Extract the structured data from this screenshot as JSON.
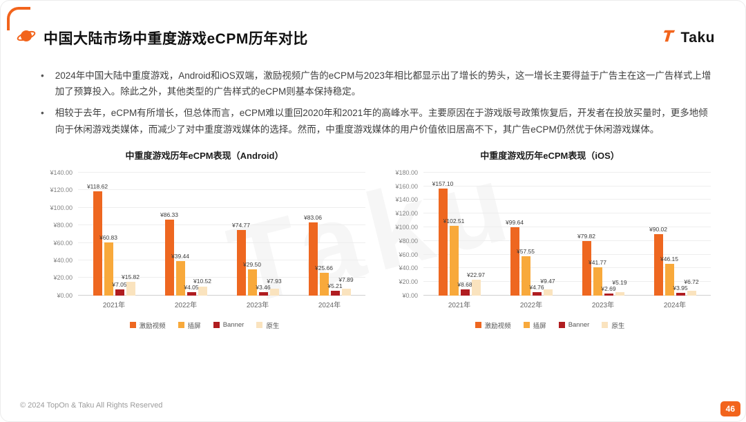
{
  "header": {
    "title": "中国大陆市场中重度游戏eCPM历年对比",
    "logo_text": "Taku"
  },
  "bullets": [
    "2024年中国大陆中重度游戏，Android和iOS双端，激励视频广告的eCPM与2023年相比都显示出了增长的势头，这一增长主要得益于广告主在这一广告样式上增加了预算投入。除此之外，其他类型的广告样式的eCPM则基本保持稳定。",
    "相较于去年，eCPM有所增长，但总体而言，eCPM难以重回2020年和2021年的高峰水平。主要原因在于游戏版号政策恢复后，开发者在投放买量时，更多地倾向于休闲游戏类媒体，而减少了对中重度游戏媒体的选择。然而，中重度游戏媒体的用户价值依旧居高不下，其广告eCPM仍然优于休闲游戏媒体。"
  ],
  "watermark": "Taku",
  "accent_color": "#F2641C",
  "chart_data": [
    {
      "type": "bar",
      "title": "中重度游戏历年eCPM表现（Android）",
      "categories": [
        "2021年",
        "2022年",
        "2023年",
        "2024年"
      ],
      "series": [
        {
          "name": "激励视频",
          "color": "#EE6720",
          "values": [
            118.62,
            86.33,
            74.77,
            83.06
          ]
        },
        {
          "name": "插屏",
          "color": "#F8A93B",
          "values": [
            60.83,
            39.44,
            29.5,
            25.66
          ]
        },
        {
          "name": "Banner",
          "color": "#B01D20",
          "values": [
            7.05,
            4.05,
            3.46,
            5.21
          ]
        },
        {
          "name": "原生",
          "color": "#FAE3BE",
          "values": [
            15.82,
            10.52,
            7.93,
            7.89
          ]
        }
      ],
      "currency": "¥",
      "ylim": [
        0,
        140
      ],
      "ytick_step": 20,
      "xlabel": "",
      "ylabel": "",
      "grid": true,
      "legend_position": "bottom"
    },
    {
      "type": "bar",
      "title": "中重度游戏历年eCPM表现（iOS）",
      "categories": [
        "2021年",
        "2022年",
        "2023年",
        "2024年"
      ],
      "series": [
        {
          "name": "激励视频",
          "color": "#EE6720",
          "values": [
            157.1,
            99.64,
            79.82,
            90.02
          ]
        },
        {
          "name": "插屏",
          "color": "#F8A93B",
          "values": [
            102.51,
            57.55,
            41.77,
            46.15
          ]
        },
        {
          "name": "Banner",
          "color": "#B01D20",
          "values": [
            8.68,
            4.76,
            2.69,
            3.95
          ]
        },
        {
          "name": "原生",
          "color": "#FAE3BE",
          "values": [
            22.97,
            9.47,
            5.19,
            6.72
          ]
        }
      ],
      "currency": "¥",
      "ylim": [
        0,
        180
      ],
      "ytick_step": 20,
      "xlabel": "",
      "ylabel": "",
      "grid": true,
      "legend_position": "bottom"
    }
  ],
  "footer": {
    "copyright": "© 2024 TopOn & Taku All Rights Reserved",
    "page_number": "46"
  }
}
